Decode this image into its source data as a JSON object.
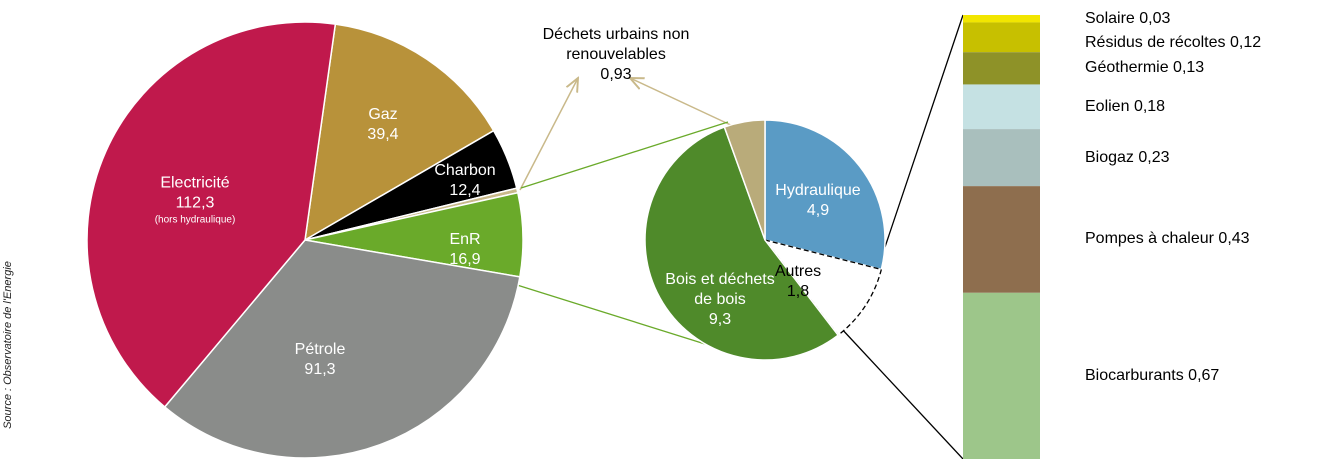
{
  "chart_data": [
    {
      "type": "pie",
      "categories": [
        "Gaz",
        "Charbon",
        "Déchets urbains non renouvelables",
        "EnR",
        "Pétrole",
        "Electricité"
      ],
      "values": [
        39.4,
        12.4,
        0.93,
        16.9,
        91.3,
        112.3
      ],
      "value_labels": [
        "39,4",
        "12,4",
        "0,93",
        "16,9",
        "91,3",
        "112,3"
      ],
      "colors": [
        "#b8923a",
        "#000000",
        "#c9b98a",
        "#6aaa2a",
        "#8a8c8a",
        "#c0194c"
      ],
      "annotations": [
        "(hors hydraulique)"
      ]
    },
    {
      "type": "pie",
      "categories": [
        "Hydraulique",
        "Autres",
        "Bois et déchets de bois",
        null
      ],
      "values": [
        4.9,
        1.8,
        9.3,
        0.93
      ],
      "value_labels": [
        "4,9",
        "1,8",
        "9,3",
        null
      ],
      "colors": [
        "#5a9bc5",
        "#ffffff",
        "#4f8a2a",
        "#b9ab7a"
      ]
    },
    {
      "type": "bar",
      "stacked": true,
      "categories": [
        "Solaire",
        "Résidus de récoltes",
        "Géothermie",
        "Eolien",
        "Biogaz",
        "Pompes à chaleur",
        "Biocarburants"
      ],
      "values": [
        0.03,
        0.12,
        0.13,
        0.18,
        0.23,
        0.43,
        0.67
      ],
      "value_labels": [
        "0,03",
        "0,12",
        "0,13",
        "0,18",
        "0,23",
        "0,43",
        "0,67"
      ],
      "colors": [
        "#f2e600",
        "#c7c000",
        "#8e9228",
        "#c5e1e3",
        "#a9bfbd",
        "#8e6e4e",
        "#9dc68a"
      ]
    }
  ],
  "source": "Source : Observatoire de l'Energie"
}
